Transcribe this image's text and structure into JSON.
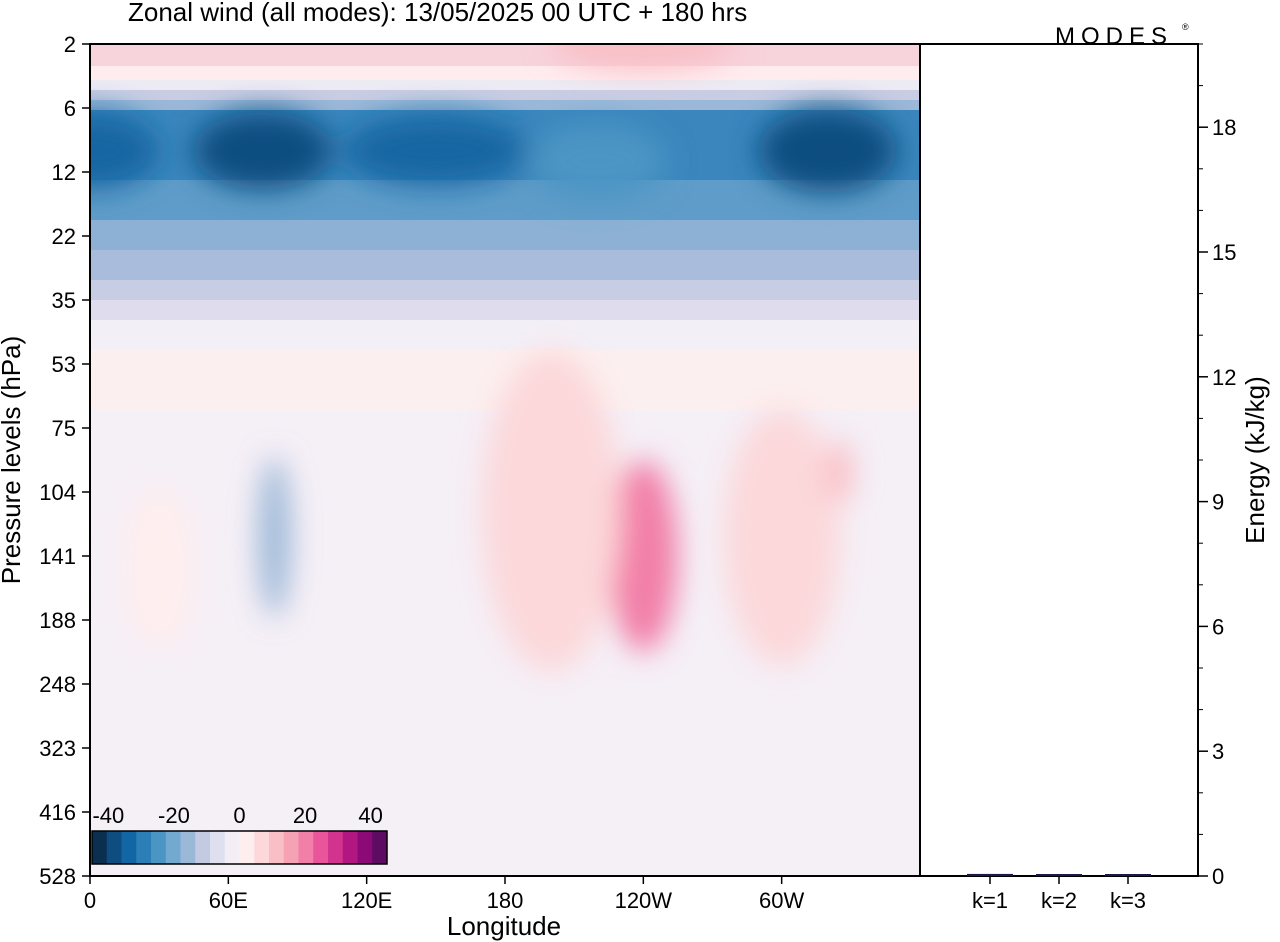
{
  "title": "Zonal wind (all modes):  13/05/2025  00 UTC  + 180 hrs",
  "logo_text": "MODES",
  "logo_mark": "®",
  "chart_data": [
    {
      "type": "heatmap",
      "title": "Zonal wind (all modes):  13/05/2025  00 UTC  + 180 hrs",
      "xlabel": "Longitude",
      "ylabel": "Pressure levels (hPa)",
      "x_ticks": [
        "0",
        "60E",
        "120E",
        "180",
        "120W",
        "60W"
      ],
      "x_tick_degrees": [
        0,
        60,
        120,
        180,
        240,
        300
      ],
      "xlim_degrees": [
        0,
        360
      ],
      "y_levels": [
        "2",
        "6",
        "12",
        "22",
        "35",
        "53",
        "75",
        "104",
        "141",
        "188",
        "248",
        "323",
        "416",
        "528"
      ],
      "colorbar": {
        "tick_labels": [
          "-40",
          "-20",
          "0",
          "20",
          "40"
        ],
        "bounds": [
          -45,
          45
        ],
        "step": 5,
        "colors": [
          "#0b2f4f",
          "#0d4d80",
          "#1266a3",
          "#2b7fb6",
          "#4b95c4",
          "#73a8cf",
          "#9bb8d8",
          "#c3cae1",
          "#dfe0ef",
          "#f3eef6",
          "#ffeeee",
          "#fcd8da",
          "#f9bfc6",
          "#f6a2b5",
          "#f27fa8",
          "#e8559b",
          "#d2338e",
          "#b21781",
          "#8c0a78",
          "#5e0b63"
        ]
      },
      "features": [
        {
          "lon": 0,
          "lat_level": 10,
          "value": -35,
          "w_deg": 60,
          "h_levels": 1.2
        },
        {
          "lon": 75,
          "lat_level": 10,
          "value": -38,
          "w_deg": 60,
          "h_levels": 1.2
        },
        {
          "lon": 150,
          "lat_level": 10,
          "value": -32,
          "w_deg": 80,
          "h_levels": 1.1
        },
        {
          "lon": 220,
          "lat_level": 11,
          "value": -25,
          "w_deg": 60,
          "h_levels": 1.2
        },
        {
          "lon": 320,
          "lat_level": 10,
          "value": -36,
          "w_deg": 60,
          "h_levels": 1.3
        },
        {
          "lon": 240,
          "lat_level": 2,
          "value": 18,
          "w_deg": 80,
          "h_levels": 0.8
        },
        {
          "lon": 80,
          "lat_level": 130,
          "value": -12,
          "w_deg": 14,
          "h_levels": 2.5
        },
        {
          "lon": 30,
          "lat_level": 150,
          "value": 8,
          "w_deg": 30,
          "h_levels": 2.5
        },
        {
          "lon": 240,
          "lat_level": 141,
          "value": 28,
          "w_deg": 30,
          "h_levels": 3
        },
        {
          "lon": 200,
          "lat_level": 115,
          "value": 14,
          "w_deg": 60,
          "h_levels": 5
        },
        {
          "lon": 300,
          "lat_level": 130,
          "value": 10,
          "w_deg": 50,
          "h_levels": 4
        },
        {
          "lon": 325,
          "lat_level": 95,
          "value": 18,
          "w_deg": 12,
          "h_levels": 1
        }
      ]
    },
    {
      "type": "bar",
      "categories": [
        "k=1",
        "k=2",
        "k=3"
      ],
      "values": [
        0.05,
        0.03,
        0.03
      ],
      "ylabel": "Energy (kJ/kg)",
      "ylim": [
        0,
        20
      ],
      "y_ticks": [
        0,
        3,
        6,
        9,
        12,
        15,
        18
      ]
    }
  ]
}
